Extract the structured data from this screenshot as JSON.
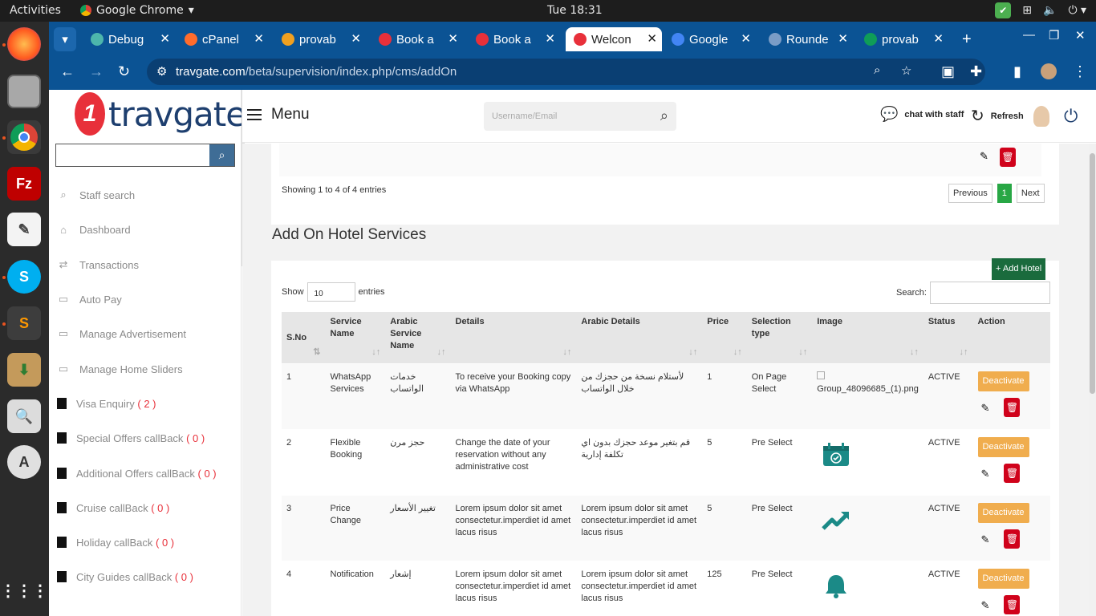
{
  "os": {
    "activities": "Activities",
    "app_name": "Google Chrome",
    "clock": "Tue 18:31"
  },
  "browser": {
    "tabs": [
      {
        "label": "Debug",
        "color": "#4db6ac"
      },
      {
        "label": "cPanel",
        "color": "#ff6c2c"
      },
      {
        "label": "provab",
        "color": "#f0a020"
      },
      {
        "label": "Book a",
        "color": "#e8303a"
      },
      {
        "label": "Book a",
        "color": "#e8303a"
      },
      {
        "label": "Welcon",
        "color": "#e8303a"
      },
      {
        "label": "Google",
        "color": "#4285f4"
      },
      {
        "label": "Rounde",
        "color": "#7a9cc6"
      },
      {
        "label": "provab",
        "color": "#0f9d58"
      }
    ],
    "url_domain": "travgate.com",
    "url_path": "/beta/supervision/index.php/cms/addOn"
  },
  "sidebar": {
    "brand": "travgate",
    "items": [
      {
        "label": "Staff search",
        "icon": "search-icon",
        "count": ""
      },
      {
        "label": "Dashboard",
        "icon": "home-icon",
        "count": ""
      },
      {
        "label": "Transactions",
        "icon": "transfer-icon",
        "count": ""
      },
      {
        "label": "Auto Pay",
        "icon": "money-icon",
        "count": ""
      },
      {
        "label": "Manage Advertisement",
        "icon": "money-icon",
        "count": ""
      },
      {
        "label": "Manage Home Sliders",
        "icon": "money-icon",
        "count": ""
      },
      {
        "label": "Visa Enquiry",
        "icon": "file-icon",
        "count": "( 2 )"
      },
      {
        "label": "Special Offers callBack",
        "icon": "file-icon",
        "count": "( 0 )"
      },
      {
        "label": "Additional Offers callBack",
        "icon": "file-icon",
        "count": "( 0 )"
      },
      {
        "label": "Cruise callBack",
        "icon": "file-icon",
        "count": "( 0 )"
      },
      {
        "label": "Holiday callBack",
        "icon": "file-icon",
        "count": "( 0 )"
      },
      {
        "label": "City Guides callBack",
        "icon": "file-icon",
        "count": "( 0 )"
      }
    ]
  },
  "header": {
    "menu_label": "Menu",
    "search_placeholder": "Username/Email",
    "chat_label": "chat with staff",
    "refresh_label": "Refresh"
  },
  "top_card": {
    "showing": "Showing 1 to 4 of 4 entries",
    "prev": "Previous",
    "page": "1",
    "next": "Next"
  },
  "hotel_services": {
    "title": "Add On Hotel Services",
    "add_button": "+ Add Hotel",
    "show_label": "Show",
    "show_value": "10",
    "entries_label": "entries",
    "search_label": "Search:",
    "columns": [
      "S.No",
      "Service Name",
      "Arabic Service Name",
      "Details",
      "Arabic Details",
      "Price",
      "Selection type",
      "Image",
      "Status",
      "Action"
    ],
    "rows": [
      {
        "sno": "1",
        "name": "WhatsApp Services",
        "arabic_name": "خدمات الواتساب",
        "details": "To receive your Booking copy via WhatsApp",
        "arabic_details": "لأستلام نسخة من حجزك من خلال الواتساب",
        "price": "1",
        "selection": "On Page Select",
        "image": "Group_48096685_(1).png",
        "image_icon": "broken-image-icon",
        "status": "ACTIVE",
        "action": "Deactivate"
      },
      {
        "sno": "2",
        "name": "Flexible Booking",
        "arabic_name": "حجز مرن",
        "details": "Change the date of your reservation without any administrative cost",
        "arabic_details": "قم بتغير موعد حجزك بدون اي تكلفة إدارية",
        "price": "5",
        "selection": "Pre Select",
        "image": "",
        "image_icon": "calendar-check-icon",
        "status": "ACTIVE",
        "action": "Deactivate"
      },
      {
        "sno": "3",
        "name": "Price Change",
        "arabic_name": "تغيير الأسعار",
        "details": "Lorem ipsum dolor sit amet consectetur.imperdiet id amet lacus risus",
        "arabic_details": "Lorem ipsum dolor sit amet consectetur.imperdiet id amet lacus risus",
        "price": "5",
        "selection": "Pre Select",
        "image": "",
        "image_icon": "trend-up-icon",
        "status": "ACTIVE",
        "action": "Deactivate"
      },
      {
        "sno": "4",
        "name": "Notification",
        "arabic_name": "إشعار",
        "details": "Lorem ipsum dolor sit amet consectetur.imperdiet id amet lacus risus",
        "arabic_details": "Lorem ipsum dolor sit amet consectetur.imperdiet id amet lacus risus",
        "price": "125",
        "selection": "Pre Select",
        "image": "",
        "image_icon": "bell-icon",
        "status": "ACTIVE",
        "action": "Deactivate"
      }
    ]
  },
  "colors": {
    "chrome_blue": "#0b5394",
    "brand_red": "#e8303a",
    "deactivate": "#f0ad4e",
    "delete": "#d0021b",
    "add_green": "#1a6b3d",
    "icon_teal": "#1b8a87"
  }
}
